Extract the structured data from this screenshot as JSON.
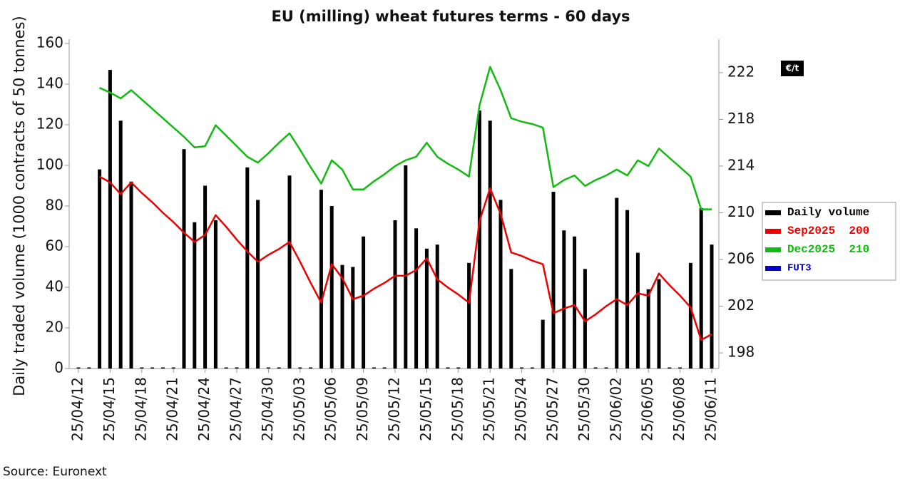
{
  "chart_data": {
    "type": "bar",
    "title": "EU (milling) wheat futures terms - 60 days",
    "y_label": "Daily traded volume (1000 contracts of 50 tonnes)",
    "y2_unit": "€/t",
    "source": "Source: Euronext",
    "categories": [
      "25/04/12",
      null,
      null,
      "25/04/15",
      null,
      null,
      "25/04/18",
      null,
      null,
      "25/04/21",
      null,
      null,
      "25/04/24",
      null,
      null,
      "25/04/27",
      null,
      null,
      "25/04/30",
      null,
      null,
      "25/05/03",
      null,
      null,
      "25/05/06",
      null,
      null,
      "25/05/09",
      null,
      null,
      "25/05/12",
      null,
      null,
      "25/05/15",
      null,
      null,
      "25/05/18",
      null,
      null,
      "25/05/21",
      null,
      null,
      "25/05/24",
      null,
      null,
      "25/05/27",
      null,
      null,
      "25/05/30",
      null,
      null,
      "25/06/02",
      null,
      null,
      "25/06/05",
      null,
      null,
      "25/06/08",
      null,
      null,
      "25/06/11"
    ],
    "ylim": [
      0,
      160
    ],
    "yticks": [
      0,
      20,
      40,
      60,
      80,
      100,
      120,
      140,
      160
    ],
    "y2lim": [
      196.66,
      224.5
    ],
    "y2ticks": [
      198,
      202,
      206,
      210,
      214,
      218,
      222
    ],
    "grid": false,
    "legend": "right",
    "series": [
      {
        "name": "Daily volume",
        "type": "bar",
        "color": "#000000",
        "values": [
          0,
          0,
          98,
          147,
          122,
          92,
          0,
          0,
          0,
          0,
          108,
          72,
          90,
          73,
          0,
          0,
          99,
          83,
          0,
          0,
          95,
          0,
          0,
          88,
          80,
          51,
          50,
          65,
          0,
          0,
          73,
          100,
          69,
          59,
          61,
          0,
          0,
          52,
          127,
          122,
          83,
          49,
          0,
          0,
          24,
          87,
          68,
          65,
          49,
          0,
          0,
          84,
          78,
          57,
          39,
          44,
          0,
          0,
          52,
          79,
          61
        ]
      },
      {
        "name": "Sep2025  200",
        "type": "line",
        "axis": "y2",
        "color": "#ee0000",
        "values": [
          null,
          null,
          213.1,
          212.6,
          211.6,
          212.6,
          211.7,
          210.9,
          210.0,
          209.2,
          208.3,
          207.5,
          208.1,
          209.8,
          208.8,
          207.7,
          206.7,
          205.8,
          206.4,
          206.9,
          207.5,
          205.8,
          204.0,
          202.3,
          205.6,
          204.4,
          202.6,
          202.9,
          203.5,
          204.0,
          204.6,
          204.6,
          205.1,
          206.1,
          204.3,
          203.6,
          203.0,
          202.3,
          209.3,
          212.1,
          209.9,
          206.6,
          206.3,
          205.9,
          205.6,
          201.4,
          201.8,
          202.1,
          200.7,
          201.3,
          202.0,
          202.6,
          202.1,
          203.1,
          202.9,
          204.8,
          203.8,
          202.9,
          201.9,
          199.1,
          199.6
        ]
      },
      {
        "name": "Dec2025  210",
        "type": "line",
        "axis": "y2",
        "color": "#11bb11",
        "values": [
          null,
          null,
          220.7,
          220.3,
          219.8,
          220.5,
          219.7,
          218.9,
          218.1,
          217.3,
          216.5,
          215.6,
          215.7,
          217.5,
          216.6,
          215.7,
          214.8,
          214.3,
          215.1,
          216.0,
          216.8,
          215.4,
          213.9,
          212.5,
          214.5,
          213.7,
          212.0,
          212.0,
          212.7,
          213.3,
          214.0,
          214.5,
          214.8,
          216.0,
          214.8,
          214.2,
          213.7,
          213.1,
          219.2,
          222.5,
          220.5,
          218.1,
          217.8,
          217.6,
          217.3,
          212.2,
          212.8,
          213.2,
          212.3,
          212.8,
          213.2,
          213.7,
          213.2,
          214.5,
          214.0,
          215.5,
          214.7,
          213.9,
          213.1,
          210.3,
          210.3
        ]
      },
      {
        "name": "FUT3",
        "type": "line",
        "axis": "y2",
        "color": "#0000cc",
        "values": [
          null,
          null,
          null,
          null,
          null,
          null,
          null,
          null,
          null,
          null,
          null,
          null,
          null,
          null,
          null,
          null,
          null,
          null,
          null,
          null,
          null,
          null,
          null,
          null,
          null,
          null,
          null,
          null,
          null,
          null,
          null,
          null,
          null,
          null,
          null,
          null,
          null,
          null,
          null,
          null,
          null,
          null,
          null,
          null,
          null,
          null,
          null,
          null,
          null,
          null,
          null,
          null,
          null,
          null,
          null,
          null,
          null,
          null,
          null,
          null,
          null
        ]
      }
    ]
  }
}
